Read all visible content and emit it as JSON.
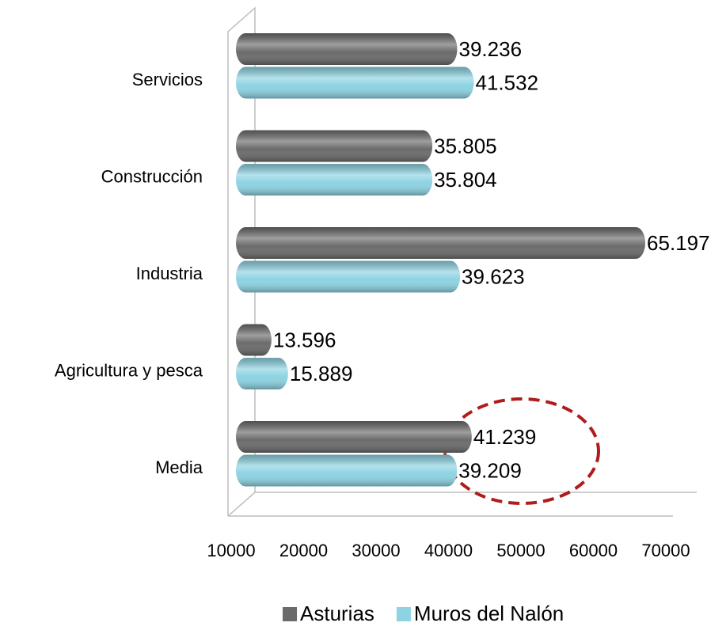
{
  "chart_data": {
    "type": "barh",
    "categories": [
      "Servicios",
      "Construcción",
      "Industria",
      "Agricultura y pesca",
      "Media"
    ],
    "series": [
      {
        "name": "Asturias",
        "color": "#6b6b6b",
        "values": [
          39236,
          35805,
          65197,
          13596,
          41239
        ],
        "value_labels": [
          "39.236",
          "35.805",
          "65.197",
          "13.596",
          "41.239"
        ]
      },
      {
        "name": "Muros del Nalón",
        "color": "#8dd3e2",
        "values": [
          41532,
          35804,
          39623,
          15889,
          39209
        ],
        "value_labels": [
          "41.532",
          "35.804",
          "39.623",
          "15.889",
          "39.209"
        ]
      }
    ],
    "xlim": [
      10000,
      70000
    ],
    "xticks": [
      10000,
      20000,
      30000,
      40000,
      50000,
      60000,
      70000
    ],
    "legend": "bottom"
  }
}
